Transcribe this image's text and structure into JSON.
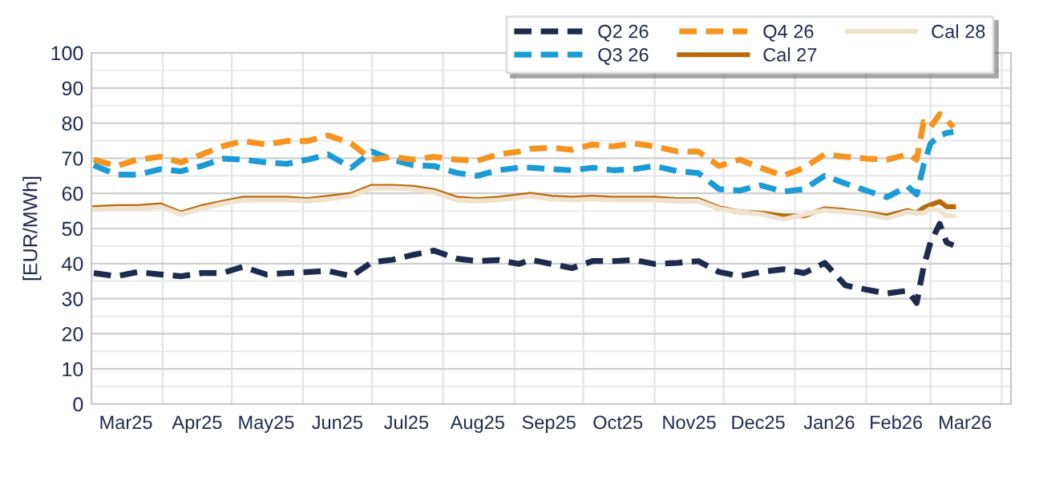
{
  "chart_data": {
    "type": "line",
    "ylabel": "[EUR/MWh]",
    "x": [
      "2025-03-02",
      "2025-03-12",
      "2025-03-21",
      "2025-03-31",
      "2025-04-09",
      "2025-04-18",
      "2025-04-27",
      "2025-05-06",
      "2025-05-16",
      "2025-05-25",
      "2025-06-03",
      "2025-06-12",
      "2025-06-22",
      "2025-07-01",
      "2025-07-10",
      "2025-07-19",
      "2025-07-28",
      "2025-08-07",
      "2025-08-16",
      "2025-08-25",
      "2025-09-03",
      "2025-09-08",
      "2025-09-17",
      "2025-09-26",
      "2025-10-05",
      "2025-10-14",
      "2025-10-23",
      "2025-11-01",
      "2025-11-11",
      "2025-11-20",
      "2025-11-29",
      "2025-12-08",
      "2025-12-17",
      "2025-12-27",
      "2026-01-05",
      "2026-01-14",
      "2026-01-23",
      "2026-02-01",
      "2026-02-10",
      "2026-02-19",
      "2026-02-23",
      "2026-02-26",
      "2026-03-01",
      "2026-03-05",
      "2026-03-08",
      "2026-03-11"
    ],
    "series": [
      {
        "name": "Q2 26",
        "color": "#1f2a4f",
        "line_style": "dashed",
        "values": [
          37.3,
          36.4,
          37.6,
          36.9,
          36.4,
          37.3,
          37.3,
          39.1,
          36.9,
          37.3,
          37.6,
          37.9,
          36.4,
          40.4,
          41.1,
          42.5,
          43.7,
          41.4,
          40.7,
          41.0,
          39.9,
          41.1,
          39.9,
          38.7,
          40.7,
          40.7,
          41.0,
          39.9,
          40.2,
          40.7,
          37.6,
          36.4,
          37.6,
          38.4,
          37.3,
          40.2,
          33.8,
          32.6,
          31.5,
          32.3,
          28.8,
          39.1,
          46.0,
          51.3,
          46.0,
          45.2
        ]
      },
      {
        "name": "Q3 26",
        "color": "#1a9bd7",
        "line_style": "dashed",
        "values": [
          68.0,
          65.3,
          65.3,
          66.9,
          66.3,
          67.8,
          69.9,
          69.6,
          68.8,
          68.4,
          69.6,
          71.1,
          67.3,
          71.9,
          69.6,
          68.0,
          67.8,
          65.8,
          65.0,
          66.6,
          67.3,
          67.3,
          66.9,
          66.6,
          67.3,
          66.6,
          66.9,
          67.8,
          66.3,
          65.8,
          61.2,
          60.8,
          62.3,
          60.5,
          61.2,
          65.0,
          62.8,
          60.8,
          58.9,
          62.0,
          59.7,
          68.0,
          74.2,
          76.5,
          77.2,
          77.5
        ]
      },
      {
        "name": "Q4 26",
        "color": "#f7931e",
        "line_style": "dashed",
        "values": [
          69.6,
          67.8,
          69.6,
          70.4,
          68.8,
          71.1,
          73.4,
          74.9,
          73.9,
          74.9,
          74.9,
          76.5,
          74.2,
          69.6,
          70.4,
          69.6,
          70.4,
          69.6,
          69.3,
          71.1,
          71.9,
          72.7,
          73.0,
          72.4,
          73.9,
          73.4,
          74.2,
          73.4,
          71.9,
          71.9,
          67.8,
          69.6,
          67.3,
          65.0,
          67.3,
          71.1,
          70.4,
          69.9,
          69.6,
          71.1,
          69.6,
          80.3,
          78.8,
          82.6,
          81.0,
          78.8
        ]
      },
      {
        "name": "Cal 27",
        "color": "#b8690a",
        "line_style": "solid",
        "values": [
          55.9,
          56.2,
          56.2,
          56.7,
          54.4,
          56.2,
          57.4,
          58.6,
          58.6,
          58.6,
          58.2,
          58.9,
          59.7,
          62.0,
          62.0,
          61.7,
          60.8,
          58.6,
          58.2,
          58.6,
          59.3,
          59.7,
          58.9,
          58.6,
          58.9,
          58.6,
          58.6,
          58.6,
          58.2,
          58.2,
          55.9,
          54.7,
          54.4,
          53.6,
          53.6,
          55.6,
          55.1,
          54.4,
          53.6,
          55.1,
          54.4,
          55.9,
          56.7,
          57.7,
          56.2,
          56.2
        ]
      },
      {
        "name": "Cal 28",
        "color": "#efe3cf",
        "line_style": "solid",
        "values": [
          55.4,
          55.7,
          55.7,
          56.2,
          54.0,
          55.7,
          57.0,
          58.1,
          58.1,
          58.1,
          57.8,
          58.4,
          59.2,
          61.5,
          61.5,
          61.2,
          60.3,
          58.1,
          57.8,
          58.1,
          58.8,
          59.2,
          58.4,
          58.1,
          58.4,
          58.1,
          58.1,
          58.1,
          57.8,
          57.8,
          55.6,
          54.7,
          54.1,
          52.6,
          54.0,
          55.2,
          54.7,
          54.1,
          52.9,
          54.7,
          54.4,
          54.4,
          55.6,
          55.1,
          53.6,
          53.6
        ]
      }
    ],
    "xlim": [
      "2025-03-01",
      "2026-04-05"
    ],
    "xticks": [
      {
        "value": "2025-04-01",
        "label": null
      },
      {
        "value": "2025-05-01",
        "label": null
      },
      {
        "value": "2025-06-01",
        "label": null
      },
      {
        "value": "2025-07-01",
        "label": null
      },
      {
        "value": "2025-08-01",
        "label": null
      },
      {
        "value": "2025-09-01",
        "label": null
      },
      {
        "value": "2025-10-01",
        "label": null
      },
      {
        "value": "2025-11-01",
        "label": null
      },
      {
        "value": "2025-12-01",
        "label": null
      },
      {
        "value": "2026-01-01",
        "label": null
      },
      {
        "value": "2026-02-01",
        "label": null
      },
      {
        "value": "2026-03-01",
        "label": null
      },
      {
        "value": "2026-04-01",
        "label": null
      },
      {
        "value": "2025-03-16",
        "label": "Mar25"
      },
      {
        "value": "2025-04-16",
        "label": "Apr25"
      },
      {
        "value": "2025-05-16",
        "label": "May25"
      },
      {
        "value": "2025-06-16",
        "label": "Jun25"
      },
      {
        "value": "2025-07-16",
        "label": "Jul25"
      },
      {
        "value": "2025-08-16",
        "label": "Aug25"
      },
      {
        "value": "2025-09-16",
        "label": "Sep25"
      },
      {
        "value": "2025-10-16",
        "label": "Oct25"
      },
      {
        "value": "2025-11-16",
        "label": "Nov25"
      },
      {
        "value": "2025-12-16",
        "label": "Dec25"
      },
      {
        "value": "2026-01-16",
        "label": "Jan26"
      },
      {
        "value": "2026-02-14",
        "label": "Feb26"
      },
      {
        "value": "2026-03-16",
        "label": "Mar26"
      }
    ],
    "ylim": [
      0,
      100
    ],
    "yticks": [
      0,
      10,
      20,
      30,
      40,
      50,
      60,
      70,
      80,
      90,
      100,
      {
        "value": 5,
        "label": null
      },
      {
        "value": 15,
        "label": null
      },
      {
        "value": 25,
        "label": null
      },
      {
        "value": 35,
        "label": null
      },
      {
        "value": 45,
        "label": null
      },
      {
        "value": 55,
        "label": null
      },
      {
        "value": 65,
        "label": null
      },
      {
        "value": 75,
        "label": null
      },
      {
        "value": 85,
        "label": null
      },
      {
        "value": 95,
        "label": null
      }
    ],
    "grid": true,
    "legend": "top right"
  }
}
